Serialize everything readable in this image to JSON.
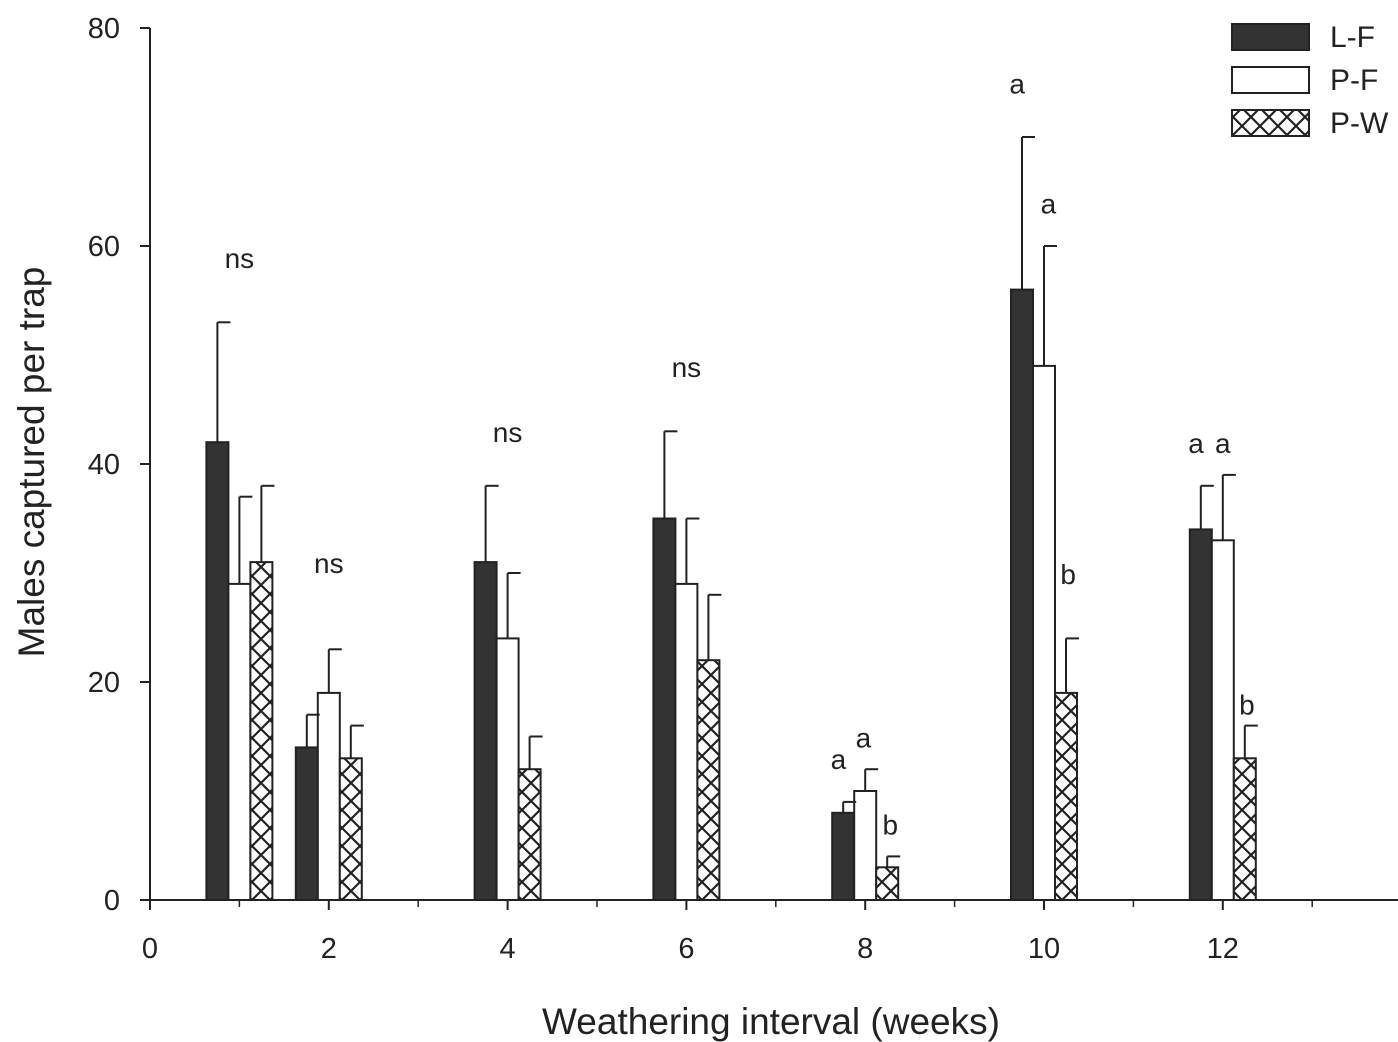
{
  "chart_data": {
    "type": "bar",
    "title": "",
    "xlabel": "Weathering interval (weeks)",
    "ylabel": "Males captured per trap",
    "xlim": [
      0,
      14
    ],
    "ylim": [
      0,
      80
    ],
    "x_ticks": [
      "0",
      "2",
      "4",
      "6",
      "8",
      "10",
      "12"
    ],
    "y_ticks": [
      "0",
      "20",
      "40",
      "60",
      "80"
    ],
    "grid": false,
    "legend_position": "top-right",
    "x": [
      1,
      2,
      4,
      6,
      8,
      10,
      12
    ],
    "series": [
      {
        "name": "L-F",
        "fill": "solid",
        "color": "#333333",
        "values": [
          42,
          14,
          31,
          35,
          8,
          56,
          34
        ],
        "errors": [
          11,
          3,
          7,
          8,
          1,
          14,
          4
        ]
      },
      {
        "name": "P-F",
        "fill": "open",
        "color": "#ffffff",
        "values": [
          29,
          19,
          24,
          29,
          10,
          49,
          33
        ],
        "errors": [
          8,
          4,
          6,
          6,
          2,
          11,
          6
        ]
      },
      {
        "name": "P-W",
        "fill": "crosshatch",
        "color": "#ffffff",
        "values": [
          31,
          13,
          12,
          22,
          3,
          19,
          13
        ],
        "errors": [
          7,
          3,
          3,
          6,
          1,
          5,
          3
        ]
      }
    ],
    "annotations": [
      {
        "text": "ns",
        "x": 1,
        "y": 58
      },
      {
        "text": "ns",
        "x": 2,
        "y": 30
      },
      {
        "text": "ns",
        "x": 4,
        "y": 42
      },
      {
        "text": "ns",
        "x": 6,
        "y": 48
      },
      {
        "text": "a",
        "x": 7.7,
        "y": 12
      },
      {
        "text": "a",
        "x": 7.98,
        "y": 14
      },
      {
        "text": "b",
        "x": 8.28,
        "y": 6
      },
      {
        "text": "a",
        "x": 9.7,
        "y": 74
      },
      {
        "text": "a",
        "x": 10.05,
        "y": 63
      },
      {
        "text": "b",
        "x": 10.27,
        "y": 29
      },
      {
        "text": "a",
        "x": 11.7,
        "y": 41
      },
      {
        "text": "a",
        "x": 12.0,
        "y": 41
      },
      {
        "text": "b",
        "x": 12.27,
        "y": 17
      }
    ]
  }
}
